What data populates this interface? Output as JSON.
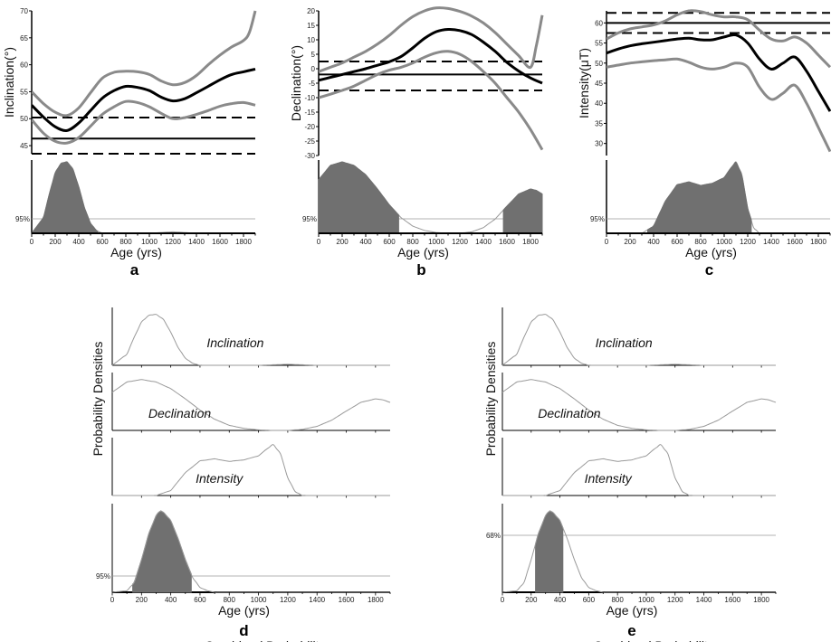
{
  "chart_data": [
    {
      "panel": "a",
      "type": "line",
      "ylabel": "Inclination(°)",
      "xlabel": "Age (yrs)",
      "xlim": [
        0,
        1900
      ],
      "ylim": [
        43.5,
        70
      ],
      "yticks": [
        "45",
        "50",
        "55",
        "60",
        "65",
        "70"
      ],
      "xticks": [
        "0",
        "200",
        "400",
        "600",
        "800",
        "1000",
        "1200",
        "1400",
        "1600",
        "1800"
      ],
      "curve": {
        "x": [
          0,
          100,
          200,
          300,
          400,
          500,
          600,
          700,
          800,
          900,
          1000,
          1100,
          1200,
          1300,
          1400,
          1500,
          1600,
          1700,
          1800,
          1900
        ],
        "y": [
          52.5,
          50.3,
          48.5,
          47.8,
          49.2,
          51.5,
          53.8,
          55.2,
          56.0,
          55.8,
          55.2,
          54.0,
          53.3,
          53.7,
          54.8,
          56.0,
          57.2,
          58.2,
          58.7,
          59.2
        ]
      },
      "upper": {
        "x": [
          0,
          100,
          200,
          300,
          400,
          500,
          600,
          700,
          800,
          900,
          1000,
          1100,
          1200,
          1300,
          1400,
          1500,
          1600,
          1700,
          1800,
          1850,
          1900
        ],
        "y": [
          55.0,
          52.8,
          51.2,
          50.6,
          52.0,
          54.8,
          57.5,
          58.6,
          58.8,
          58.7,
          58.2,
          57.0,
          56.3,
          56.7,
          58.0,
          60.0,
          61.8,
          63.3,
          64.5,
          66.0,
          70.0
        ]
      },
      "lower": {
        "x": [
          0,
          100,
          200,
          300,
          400,
          500,
          600,
          700,
          800,
          900,
          1000,
          1100,
          1200,
          1300,
          1400,
          1500,
          1600,
          1700,
          1800,
          1900
        ],
        "y": [
          49.8,
          47.3,
          45.8,
          45.5,
          46.5,
          48.6,
          50.8,
          52.2,
          53.2,
          53.0,
          52.2,
          51.0,
          50.0,
          50.2,
          50.8,
          51.5,
          52.3,
          52.8,
          53.0,
          52.5
        ]
      },
      "reference": 46.3,
      "ref_bounds": [
        43.5,
        50.2
      ],
      "density": {
        "x": [
          0,
          100,
          150,
          200,
          250,
          300,
          350,
          400,
          450,
          500,
          550,
          600,
          700,
          1000,
          1100,
          1200,
          1300,
          1400,
          1600,
          1900
        ],
        "y": [
          0,
          0.22,
          0.55,
          0.85,
          0.98,
          1.0,
          0.9,
          0.65,
          0.35,
          0.14,
          0.04,
          0,
          0,
          0,
          0.01,
          0.02,
          0.01,
          0,
          0,
          0
        ]
      },
      "confidence_label": "95%",
      "shaded_range": [
        0,
        560
      ]
    },
    {
      "panel": "b",
      "type": "line",
      "ylabel": "Declination(°)",
      "xlabel": "Age (yrs)",
      "xlim": [
        0,
        1900
      ],
      "ylim": [
        -30,
        20
      ],
      "yticks": [
        "-30",
        "-25",
        "-20",
        "-15",
        "-10",
        "-5",
        "0",
        "5",
        "10",
        "15",
        "20"
      ],
      "xticks": [
        "0",
        "200",
        "400",
        "600",
        "800",
        "1000",
        "1200",
        "1400",
        "1600",
        "1800"
      ],
      "curve": {
        "x": [
          0,
          100,
          200,
          300,
          400,
          500,
          600,
          700,
          800,
          900,
          1000,
          1100,
          1200,
          1300,
          1400,
          1500,
          1600,
          1700,
          1800,
          1900
        ],
        "y": [
          -4.0,
          -3.0,
          -2.0,
          -1.0,
          0.0,
          1.2,
          2.4,
          4.2,
          7.2,
          10.5,
          12.8,
          13.6,
          13.2,
          11.8,
          9.2,
          6.0,
          2.2,
          -0.8,
          -3.2,
          -5.0
        ]
      },
      "upper": {
        "x": [
          0,
          100,
          200,
          300,
          400,
          500,
          600,
          700,
          800,
          900,
          1000,
          1100,
          1200,
          1300,
          1400,
          1500,
          1600,
          1700,
          1800,
          1850,
          1900
        ],
        "y": [
          -1.0,
          0.5,
          2.0,
          4.0,
          6.0,
          8.5,
          11.5,
          15.0,
          18.0,
          20.0,
          21.0,
          20.8,
          19.8,
          18.2,
          15.8,
          12.5,
          8.5,
          4.5,
          0.5,
          8.0,
          18.5
        ]
      },
      "lower": {
        "x": [
          0,
          100,
          200,
          300,
          400,
          500,
          600,
          700,
          800,
          900,
          1000,
          1100,
          1200,
          1300,
          1400,
          1500,
          1600,
          1700,
          1800,
          1900
        ],
        "y": [
          -10.0,
          -8.8,
          -7.5,
          -6.0,
          -4.0,
          -2.0,
          -0.5,
          0.5,
          2.0,
          4.0,
          5.5,
          6.0,
          5.0,
          2.5,
          -1.0,
          -5.0,
          -10.0,
          -15.0,
          -21.0,
          -28.0
        ]
      },
      "reference": -2.0,
      "ref_bounds": [
        -7.5,
        2.5
      ],
      "density": {
        "x": [
          0,
          100,
          200,
          300,
          400,
          500,
          600,
          700,
          800,
          900,
          1000,
          1100,
          1200,
          1300,
          1400,
          1500,
          1600,
          1700,
          1800,
          1850,
          1900
        ],
        "y": [
          0.75,
          0.95,
          1.0,
          0.95,
          0.82,
          0.62,
          0.4,
          0.22,
          0.1,
          0.04,
          0.01,
          0,
          0,
          0.02,
          0.08,
          0.2,
          0.38,
          0.55,
          0.62,
          0.6,
          0.55
        ]
      },
      "confidence_label": "95%",
      "shaded_range": [
        0,
        680
      ],
      "shaded_range_2": [
        1570,
        1900
      ]
    },
    {
      "panel": "c",
      "type": "line",
      "ylabel": "Intensity(μT)",
      "xlabel": "Age (yrs)",
      "xlim": [
        0,
        1900
      ],
      "ylim": [
        27,
        63
      ],
      "yticks": [
        "30",
        "35",
        "40",
        "45",
        "50",
        "55",
        "60"
      ],
      "xticks": [
        "0",
        "200",
        "400",
        "600",
        "800",
        "1000",
        "1200",
        "1400",
        "1600",
        "1800"
      ],
      "curve": {
        "x": [
          0,
          100,
          200,
          300,
          400,
          500,
          600,
          700,
          800,
          900,
          1000,
          1100,
          1200,
          1300,
          1400,
          1500,
          1600,
          1700,
          1800,
          1900
        ],
        "y": [
          52.5,
          53.5,
          54.3,
          54.8,
          55.2,
          55.6,
          56.0,
          56.2,
          55.8,
          55.8,
          56.5,
          57.0,
          55.0,
          51.0,
          48.5,
          50.0,
          51.5,
          48.0,
          43.0,
          38.0
        ]
      },
      "upper": {
        "x": [
          0,
          100,
          200,
          300,
          400,
          500,
          600,
          700,
          800,
          900,
          1000,
          1100,
          1200,
          1300,
          1400,
          1500,
          1600,
          1700,
          1800,
          1900
        ],
        "y": [
          56.0,
          57.5,
          58.5,
          59.0,
          59.5,
          60.5,
          62.0,
          63.0,
          62.8,
          62.0,
          61.5,
          61.5,
          60.8,
          58.2,
          56.0,
          55.5,
          56.5,
          55.0,
          52.0,
          49.0
        ]
      },
      "lower": {
        "x": [
          0,
          100,
          200,
          300,
          400,
          500,
          600,
          700,
          800,
          900,
          1000,
          1100,
          1200,
          1300,
          1400,
          1500,
          1600,
          1700,
          1800,
          1900
        ],
        "y": [
          49.0,
          49.5,
          50.0,
          50.3,
          50.6,
          50.8,
          51.0,
          50.2,
          49.0,
          48.5,
          49.0,
          50.0,
          49.0,
          44.0,
          41.0,
          42.5,
          44.5,
          40.0,
          34.0,
          28.0
        ]
      },
      "reference": 60.0,
      "ref_bounds": [
        57.5,
        62.5
      ],
      "density": {
        "x": [
          0,
          300,
          400,
          500,
          600,
          700,
          800,
          900,
          1000,
          1050,
          1100,
          1150,
          1200,
          1250,
          1300,
          1400,
          1900
        ],
        "y": [
          0,
          0,
          0.1,
          0.45,
          0.68,
          0.72,
          0.67,
          0.7,
          0.78,
          0.9,
          1.0,
          0.82,
          0.35,
          0.08,
          0,
          0,
          0
        ]
      },
      "confidence_label": "95%",
      "shaded_range": [
        350,
        1230
      ]
    },
    {
      "panel": "d",
      "type": "area",
      "ylabel": "Probability Densities",
      "xlabel": "Age (yrs)",
      "xlim": [
        0,
        1900
      ],
      "xticks": [
        "0",
        "200",
        "400",
        "600",
        "800",
        "1000",
        "1200",
        "1400",
        "1600",
        "1800"
      ],
      "subplots": [
        {
          "label": "Inclination",
          "x": [
            0,
            100,
            150,
            200,
            250,
            300,
            350,
            400,
            450,
            500,
            550,
            600,
            700,
            1000,
            1100,
            1200,
            1300,
            1400,
            1600,
            1900
          ],
          "y": [
            0,
            0.22,
            0.55,
            0.85,
            0.98,
            1.0,
            0.9,
            0.65,
            0.35,
            0.14,
            0.04,
            0,
            0,
            0,
            0.01,
            0.02,
            0.01,
            0,
            0,
            0
          ]
        },
        {
          "label": "Declination",
          "x": [
            0,
            100,
            200,
            300,
            400,
            500,
            600,
            700,
            800,
            900,
            1000,
            1100,
            1200,
            1300,
            1400,
            1500,
            1600,
            1700,
            1800,
            1850,
            1900
          ],
          "y": [
            0.75,
            0.95,
            1.0,
            0.95,
            0.82,
            0.62,
            0.4,
            0.22,
            0.1,
            0.04,
            0.01,
            0,
            0,
            0.02,
            0.08,
            0.2,
            0.38,
            0.55,
            0.62,
            0.6,
            0.55
          ]
        },
        {
          "label": "Intensity",
          "x": [
            0,
            300,
            400,
            500,
            600,
            700,
            800,
            900,
            1000,
            1050,
            1100,
            1150,
            1200,
            1250,
            1300,
            1400,
            1900
          ],
          "y": [
            0,
            0,
            0.1,
            0.45,
            0.68,
            0.72,
            0.67,
            0.7,
            0.78,
            0.9,
            1.0,
            0.82,
            0.35,
            0.08,
            0,
            0,
            0
          ]
        },
        {
          "label": "Combined Probability",
          "x": [
            0,
            100,
            150,
            200,
            250,
            300,
            330,
            350,
            400,
            450,
            500,
            550,
            600,
            650,
            700,
            800,
            1900
          ],
          "y": [
            0,
            0.02,
            0.12,
            0.4,
            0.72,
            0.94,
            1.0,
            0.98,
            0.88,
            0.66,
            0.4,
            0.18,
            0.06,
            0.02,
            0,
            0,
            0
          ],
          "confidence_label": "95%",
          "shaded_range": [
            140,
            540
          ]
        }
      ]
    },
    {
      "panel": "e",
      "type": "area",
      "ylabel": "Probability Densities",
      "xlabel": "Age (yrs)",
      "xlim": [
        0,
        1900
      ],
      "xticks": [
        "0",
        "200",
        "400",
        "600",
        "800",
        "1000",
        "1200",
        "1400",
        "1600",
        "1800"
      ],
      "subplots": [
        {
          "label": "Inclination",
          "x": [
            0,
            100,
            150,
            200,
            250,
            300,
            350,
            400,
            450,
            500,
            550,
            600,
            700,
            1000,
            1100,
            1200,
            1300,
            1400,
            1600,
            1900
          ],
          "y": [
            0,
            0.22,
            0.55,
            0.85,
            0.98,
            1.0,
            0.9,
            0.65,
            0.35,
            0.14,
            0.04,
            0,
            0,
            0,
            0.01,
            0.02,
            0.01,
            0,
            0,
            0
          ]
        },
        {
          "label": "Declination",
          "x": [
            0,
            100,
            200,
            300,
            400,
            500,
            600,
            700,
            800,
            900,
            1000,
            1100,
            1200,
            1300,
            1400,
            1500,
            1600,
            1700,
            1800,
            1850,
            1900
          ],
          "y": [
            0.75,
            0.95,
            1.0,
            0.95,
            0.82,
            0.62,
            0.4,
            0.22,
            0.1,
            0.04,
            0.01,
            0,
            0,
            0.02,
            0.08,
            0.2,
            0.38,
            0.55,
            0.62,
            0.6,
            0.55
          ]
        },
        {
          "label": "Intensity",
          "x": [
            0,
            300,
            400,
            500,
            600,
            700,
            800,
            900,
            1000,
            1050,
            1100,
            1150,
            1200,
            1250,
            1300,
            1400,
            1900
          ],
          "y": [
            0,
            0,
            0.1,
            0.45,
            0.68,
            0.72,
            0.67,
            0.7,
            0.78,
            0.9,
            1.0,
            0.82,
            0.35,
            0.08,
            0,
            0,
            0
          ]
        },
        {
          "label": "Combined Probability",
          "x": [
            0,
            100,
            150,
            200,
            250,
            300,
            330,
            350,
            400,
            450,
            500,
            550,
            600,
            650,
            700,
            800,
            1900
          ],
          "y": [
            0,
            0.02,
            0.12,
            0.4,
            0.72,
            0.94,
            1.0,
            0.98,
            0.88,
            0.66,
            0.4,
            0.18,
            0.06,
            0.02,
            0,
            0,
            0
          ],
          "confidence_label": "68%",
          "shaded_range": [
            230,
            420
          ]
        }
      ]
    }
  ],
  "colors": {
    "mean": "#000000",
    "bounds": "#8a8a8a",
    "fill": "#707070",
    "thin": "#9a9a9a"
  }
}
